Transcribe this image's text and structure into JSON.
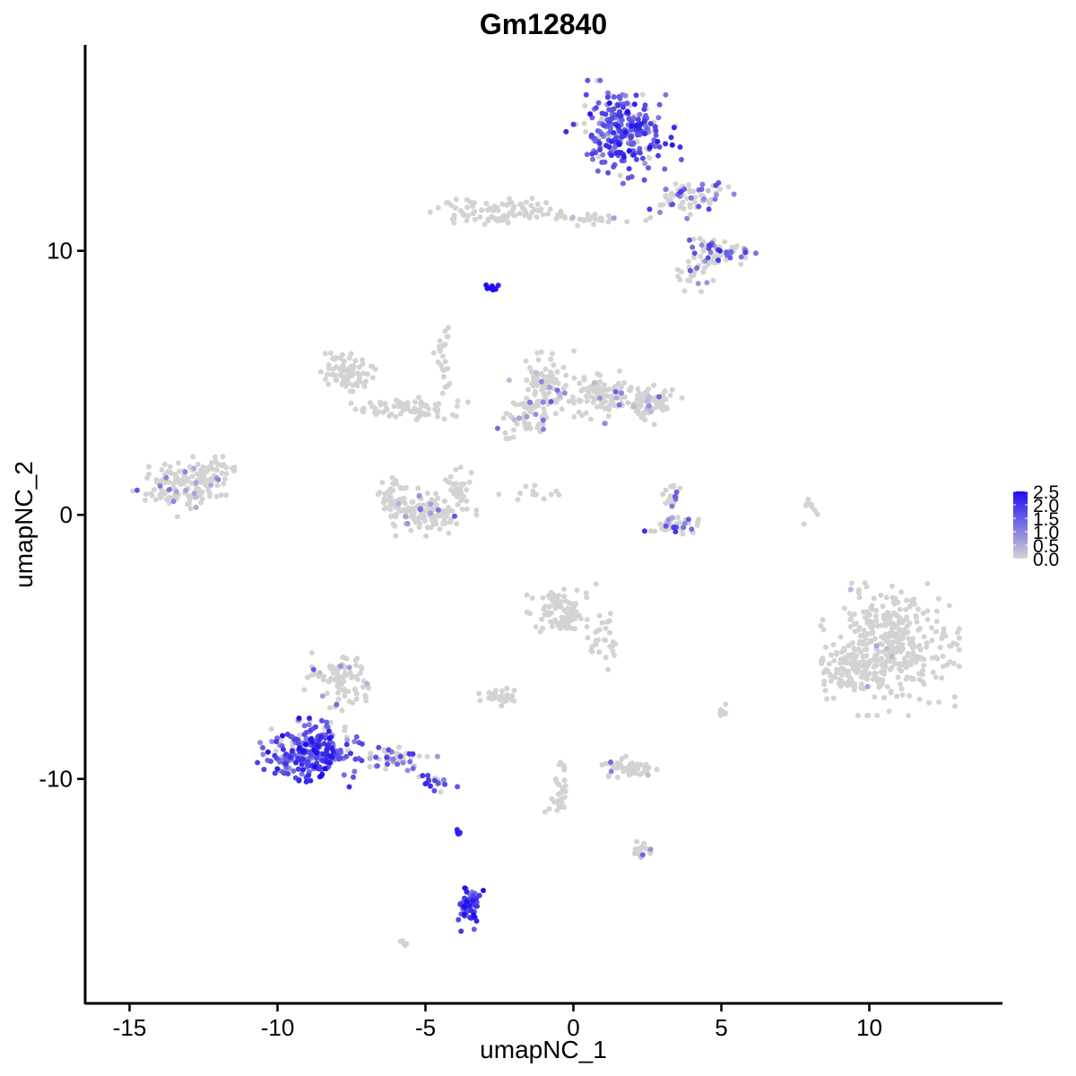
{
  "chart_data": {
    "type": "scatter",
    "title": "Gm12840",
    "xlabel": "umapNC_1",
    "ylabel": "umapNC_2",
    "xlim": [
      -16.5,
      14.5
    ],
    "ylim": [
      -18.5,
      17.8
    ],
    "x_ticks": [
      -15,
      -10,
      -5,
      0,
      5,
      10
    ],
    "x_tick_labels": [
      "-15",
      "-10",
      "-5",
      "0",
      "5",
      "10"
    ],
    "y_ticks": [
      -10,
      0,
      10
    ],
    "y_tick_labels": [
      "-10",
      "0",
      "10"
    ],
    "grid": false,
    "legend": {
      "placement": "right",
      "type": "colorbar",
      "min": 0.0,
      "max": 2.5,
      "ticks": [
        0.0,
        0.5,
        1.0,
        1.5,
        2.0,
        2.5
      ],
      "tick_labels": [
        "0.0",
        "0.5",
        "1.0",
        "1.5",
        "2.0",
        "2.5"
      ]
    },
    "colors": {
      "low": "#d3d3d3",
      "high": "#1f0ff0"
    },
    "clusters": [
      {
        "cx": 1.7,
        "cy": 14.5,
        "rx": 1.5,
        "ry": 1.5,
        "n": 260,
        "expr": 1.6,
        "frac": 0.85
      },
      {
        "cx": 3.9,
        "cy": 12.0,
        "rx": 1.3,
        "ry": 0.6,
        "n": 70,
        "expr": 1.2,
        "frac": 0.35
      },
      {
        "cx": 5.0,
        "cy": 10.0,
        "rx": 1.0,
        "ry": 0.5,
        "n": 60,
        "expr": 1.3,
        "frac": 0.4
      },
      {
        "cx": 4.2,
        "cy": 9.1,
        "rx": 0.6,
        "ry": 0.5,
        "n": 30,
        "expr": 1.0,
        "frac": 0.2
      },
      {
        "cx": -2.5,
        "cy": 11.5,
        "rx": 1.8,
        "ry": 0.5,
        "n": 90,
        "expr": 0.5,
        "frac": 0.0
      },
      {
        "cx": 0.7,
        "cy": 11.2,
        "rx": 1.6,
        "ry": 0.25,
        "n": 30,
        "expr": 0.5,
        "frac": 0.1
      },
      {
        "cx": -2.8,
        "cy": 8.6,
        "rx": 0.2,
        "ry": 0.15,
        "n": 10,
        "expr": 2.5,
        "frac": 1.0
      },
      {
        "cx": -7.5,
        "cy": 5.3,
        "rx": 0.9,
        "ry": 0.7,
        "n": 80,
        "expr": 0.5,
        "frac": 0.0
      },
      {
        "cx": -5.7,
        "cy": 4.0,
        "rx": 1.8,
        "ry": 0.4,
        "n": 70,
        "expr": 0.5,
        "frac": 0.02
      },
      {
        "cx": -4.4,
        "cy": 5.8,
        "rx": 0.3,
        "ry": 1.5,
        "n": 25,
        "expr": 0.5,
        "frac": 0.05
      },
      {
        "cx": -1.0,
        "cy": 4.8,
        "rx": 0.9,
        "ry": 1.2,
        "n": 90,
        "expr": 0.8,
        "frac": 0.1
      },
      {
        "cx": 1.0,
        "cy": 4.5,
        "rx": 1.2,
        "ry": 0.8,
        "n": 110,
        "expr": 0.7,
        "frac": 0.08
      },
      {
        "cx": 2.5,
        "cy": 4.2,
        "rx": 0.9,
        "ry": 0.6,
        "n": 70,
        "expr": 0.7,
        "frac": 0.08
      },
      {
        "cx": -1.7,
        "cy": 3.8,
        "rx": 0.8,
        "ry": 0.7,
        "n": 50,
        "expr": 0.7,
        "frac": 0.1
      },
      {
        "cx": -13.2,
        "cy": 1.1,
        "rx": 1.3,
        "ry": 0.9,
        "n": 140,
        "expr": 0.8,
        "frac": 0.12
      },
      {
        "cx": -12.0,
        "cy": 1.8,
        "rx": 0.5,
        "ry": 0.5,
        "n": 25,
        "expr": 0.5,
        "frac": 0.0
      },
      {
        "cx": -5.1,
        "cy": 0.1,
        "rx": 1.4,
        "ry": 0.7,
        "n": 140,
        "expr": 0.9,
        "frac": 0.08
      },
      {
        "cx": -6.1,
        "cy": 0.9,
        "rx": 0.4,
        "ry": 0.6,
        "n": 30,
        "expr": 0.5,
        "frac": 0.0
      },
      {
        "cx": -3.9,
        "cy": 1.0,
        "rx": 0.4,
        "ry": 0.7,
        "n": 30,
        "expr": 0.5,
        "frac": 0.0
      },
      {
        "cx": -1.5,
        "cy": 0.8,
        "rx": 0.8,
        "ry": 0.3,
        "n": 12,
        "expr": 0.5,
        "frac": 0.0
      },
      {
        "cx": 3.4,
        "cy": -0.4,
        "rx": 0.8,
        "ry": 0.4,
        "n": 40,
        "expr": 1.4,
        "frac": 0.35
      },
      {
        "cx": 3.3,
        "cy": 0.6,
        "rx": 0.3,
        "ry": 0.6,
        "n": 20,
        "expr": 1.2,
        "frac": 0.3
      },
      {
        "cx": 8.0,
        "cy": 0.3,
        "rx": 0.3,
        "ry": 0.5,
        "n": 10,
        "expr": 0.8,
        "frac": 0.1
      },
      {
        "cx": 10.7,
        "cy": -5.0,
        "rx": 1.8,
        "ry": 2.0,
        "n": 380,
        "expr": 0.5,
        "frac": 0.01
      },
      {
        "cx": 9.3,
        "cy": -5.8,
        "rx": 0.9,
        "ry": 1.0,
        "n": 90,
        "expr": 0.5,
        "frac": 0.01
      },
      {
        "cx": -0.4,
        "cy": -3.7,
        "rx": 0.9,
        "ry": 0.9,
        "n": 90,
        "expr": 0.5,
        "frac": 0.0
      },
      {
        "cx": 0.9,
        "cy": -4.8,
        "rx": 0.6,
        "ry": 0.9,
        "n": 30,
        "expr": 0.5,
        "frac": 0.0
      },
      {
        "cx": -2.5,
        "cy": -6.9,
        "rx": 0.6,
        "ry": 0.3,
        "n": 30,
        "expr": 0.5,
        "frac": 0.0
      },
      {
        "cx": -7.8,
        "cy": -6.3,
        "rx": 1.0,
        "ry": 1.0,
        "n": 90,
        "expr": 0.6,
        "frac": 0.08
      },
      {
        "cx": -8.9,
        "cy": -9.0,
        "rx": 1.4,
        "ry": 1.0,
        "n": 280,
        "expr": 1.6,
        "frac": 0.85
      },
      {
        "cx": -6.0,
        "cy": -9.2,
        "rx": 1.3,
        "ry": 0.4,
        "n": 50,
        "expr": 1.2,
        "frac": 0.5
      },
      {
        "cx": -4.6,
        "cy": -10.1,
        "rx": 0.6,
        "ry": 0.3,
        "n": 20,
        "expr": 1.8,
        "frac": 0.7
      },
      {
        "cx": -3.9,
        "cy": -12.1,
        "rx": 0.1,
        "ry": 0.3,
        "n": 6,
        "expr": 2.0,
        "frac": 1.0
      },
      {
        "cx": -3.5,
        "cy": -14.7,
        "rx": 0.35,
        "ry": 0.9,
        "n": 60,
        "expr": 1.8,
        "frac": 1.0
      },
      {
        "cx": 1.9,
        "cy": -9.6,
        "rx": 0.8,
        "ry": 0.35,
        "n": 50,
        "expr": 0.7,
        "frac": 0.06
      },
      {
        "cx": -0.5,
        "cy": -10.4,
        "rx": 0.4,
        "ry": 1.1,
        "n": 30,
        "expr": 0.7,
        "frac": 0.08
      },
      {
        "cx": 2.3,
        "cy": -12.7,
        "rx": 0.4,
        "ry": 0.3,
        "n": 15,
        "expr": 0.7,
        "frac": 0.15
      },
      {
        "cx": 5.0,
        "cy": -7.4,
        "rx": 0.2,
        "ry": 0.3,
        "n": 8,
        "expr": 0.5,
        "frac": 0.0
      },
      {
        "cx": -5.8,
        "cy": -16.2,
        "rx": 0.2,
        "ry": 0.15,
        "n": 5,
        "expr": 0.5,
        "frac": 0.0
      }
    ]
  }
}
